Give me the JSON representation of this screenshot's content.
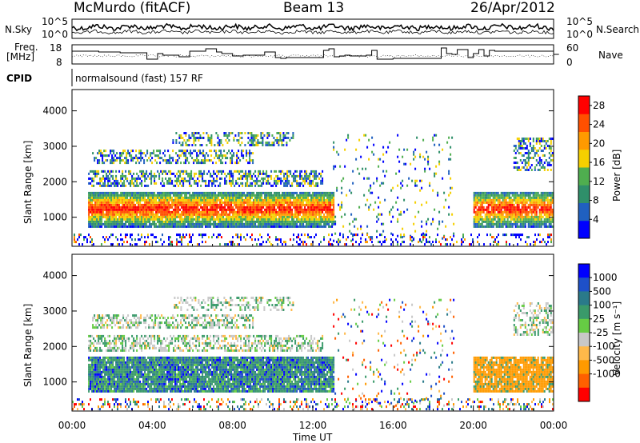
{
  "header": {
    "station": "McMurdo (fitACF)",
    "beam": "Beam 13",
    "date": "26/Apr/2012"
  },
  "left_labels": {
    "nsky": "N.Sky",
    "freq": "Freq.",
    "freq_unit": "[MHz]",
    "cpid": "CPID"
  },
  "right_labels": {
    "nsearch": "N.Search",
    "nave": "Nave"
  },
  "noise_panel": {
    "left_ticks": [
      "10^5",
      "10^0"
    ],
    "right_ticks": [
      "10^5",
      "10^0"
    ]
  },
  "freq_panel": {
    "left_ticks": [
      "18",
      "8"
    ],
    "right_ticks": [
      "60",
      "0"
    ]
  },
  "cpid_text": "normalsound (fast) 157 RF",
  "colors": {
    "power": [
      "#0000ff",
      "#2060c0",
      "#2f8f6a",
      "#4fae4f",
      "#f5d000",
      "#ff9a00",
      "#ff5000",
      "#ff0000"
    ],
    "velocity": [
      "#ff0000",
      "#ff6000",
      "#ff9a00",
      "#ffb94a",
      "#c8c8c8",
      "#66cc44",
      "#3a9a6a",
      "#2a7a8a",
      "#1e50c8",
      "#0000ff"
    ]
  },
  "chart_data": [
    {
      "type": "heatmap",
      "name": "power",
      "ylabel": "Slant Range [km]",
      "yticks": [
        1000,
        2000,
        3000,
        4000
      ],
      "ylim": [
        180,
        4600
      ],
      "xlim_hours": [
        0,
        24
      ],
      "colorbar_label": "Power [dB]",
      "colorbar_ticks": [
        4,
        8,
        12,
        16,
        20,
        24,
        28
      ],
      "colorbar_range": [
        0,
        30
      ]
    },
    {
      "type": "heatmap",
      "name": "velocity",
      "ylabel": "Slant Range [km]",
      "yticks": [
        1000,
        2000,
        3000,
        4000
      ],
      "ylim": [
        180,
        4600
      ],
      "xlim_hours": [
        0,
        24
      ],
      "colorbar_label": "Velocity [m s⁻¹]",
      "colorbar_ticks": [
        "1000",
        "500",
        "100",
        "25",
        "-25",
        "-100",
        "-500",
        "-1000"
      ]
    }
  ],
  "xaxis": {
    "title": "Time UT",
    "ticks": [
      "00:00",
      "04:00",
      "08:00",
      "12:00",
      "16:00",
      "20:00",
      "00:00"
    ]
  }
}
